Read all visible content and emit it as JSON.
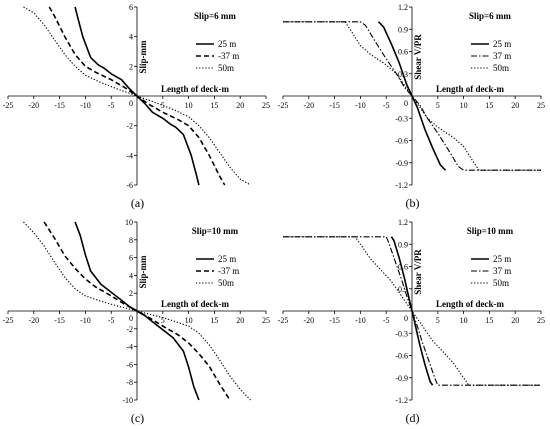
{
  "chart_data": [
    {
      "id": "a",
      "type": "line",
      "caption": "(a)",
      "annotation": "Slip=6 mm",
      "xlabel": "Length of deck-m",
      "ylabel": "Slip-mm",
      "xlim": [
        -25,
        25
      ],
      "ylim": [
        -6,
        6
      ],
      "xticks": [
        -25,
        -20,
        -15,
        -10,
        -5,
        0,
        5,
        10,
        15,
        20,
        25
      ],
      "yticks": [
        -6,
        -4,
        -2,
        2,
        4,
        6
      ],
      "legend_position": "top-right",
      "series": [
        {
          "name": "25 m",
          "style": "solid",
          "x": [
            -12,
            -11.5,
            -10.5,
            -9,
            -7.5,
            -6.5,
            -5,
            -3,
            -1.5,
            0,
            1.5,
            3,
            5,
            6.5,
            7.5,
            9,
            10.5,
            11.5,
            12
          ],
          "y": [
            6,
            5.3,
            4,
            2.6,
            2.1,
            1.9,
            1.5,
            1.1,
            0.5,
            0,
            -0.5,
            -1.1,
            -1.5,
            -1.9,
            -2.1,
            -2.6,
            -4,
            -5.3,
            -6
          ]
        },
        {
          "name": "-37 m",
          "style": "dashed",
          "x": [
            -17,
            -16,
            -14,
            -12,
            -10,
            -8,
            -5,
            -2.5,
            0,
            2.5,
            5,
            8,
            10,
            12,
            14,
            16,
            17
          ],
          "y": [
            6,
            5.4,
            4,
            2.8,
            2,
            1.6,
            1.1,
            0.6,
            0,
            -0.6,
            -1.1,
            -1.6,
            -2,
            -2.8,
            -4,
            -5.4,
            -6
          ]
        },
        {
          "name": "50m",
          "style": "dotted",
          "x": [
            -22,
            -20,
            -18,
            -16,
            -14,
            -12,
            -10,
            -7,
            -4,
            0,
            4,
            7,
            10,
            12,
            14,
            16,
            18,
            20,
            22
          ],
          "y": [
            6,
            5.6,
            4.8,
            3.8,
            2.8,
            2,
            1.4,
            0.9,
            0.5,
            0,
            -0.5,
            -0.9,
            -1.4,
            -2,
            -2.8,
            -3.8,
            -4.8,
            -5.6,
            -6
          ]
        }
      ]
    },
    {
      "id": "b",
      "type": "line",
      "caption": "(b)",
      "annotation": "Slip=6 mm",
      "xlabel": "Length of deck-m",
      "ylabel": "Shear V/PR",
      "xlim": [
        -25,
        25
      ],
      "ylim": [
        -1.2,
        1.2
      ],
      "xticks": [
        -25,
        -20,
        -15,
        -10,
        -5,
        0,
        5,
        10,
        15,
        20,
        25
      ],
      "yticks": [
        -1.2,
        -0.9,
        -0.6,
        -0.3,
        0.3,
        0.6,
        0.9,
        1.2
      ],
      "legend_position": "top-right",
      "series": [
        {
          "name": "25 m",
          "style": "solid",
          "x": [
            -6.5,
            -5.5,
            -4,
            -2.5,
            -1,
            0,
            1,
            2.5,
            4,
            5.5,
            6.5
          ],
          "y": [
            1,
            0.93,
            0.7,
            0.45,
            0.15,
            0,
            -0.15,
            -0.45,
            -0.7,
            -0.93,
            -1
          ]
        },
        {
          "name": "37 m",
          "style": "dashdot",
          "x": [
            -25,
            -10,
            -9,
            -7,
            -5,
            -3,
            -1.5,
            0,
            1.5,
            3,
            5,
            7,
            9,
            10,
            25
          ],
          "y": [
            1,
            1,
            0.95,
            0.72,
            0.5,
            0.3,
            0.12,
            0,
            -0.12,
            -0.3,
            -0.5,
            -0.72,
            -0.95,
            -1,
            -1
          ]
        },
        {
          "name": "50m",
          "style": "dotted",
          "x": [
            -25,
            -13,
            -12,
            -10,
            -8,
            -5,
            -3,
            0,
            3,
            5,
            8,
            10,
            12,
            13,
            25
          ],
          "y": [
            1,
            1,
            0.9,
            0.68,
            0.56,
            0.42,
            0.3,
            0,
            -0.3,
            -0.42,
            -0.56,
            -0.68,
            -0.9,
            -1,
            -1
          ]
        }
      ]
    },
    {
      "id": "c",
      "type": "line",
      "caption": "(c)",
      "annotation": "Slip=10 mm",
      "xlabel": "Length of deck-m",
      "ylabel": "Slip-mm",
      "xlim": [
        -25,
        25
      ],
      "ylim": [
        -10,
        10
      ],
      "xticks": [
        -25,
        -20,
        -15,
        -10,
        -5,
        0,
        5,
        10,
        15,
        20,
        25
      ],
      "yticks": [
        -10,
        -8,
        -6,
        -4,
        -2,
        2,
        4,
        6,
        8,
        10
      ],
      "legend_position": "top-right",
      "series": [
        {
          "name": "25 m",
          "style": "solid",
          "x": [
            -12,
            -11,
            -10,
            -9,
            -7,
            -5,
            -3,
            -1.5,
            0,
            1.5,
            3,
            5,
            7,
            9,
            10,
            11,
            12
          ],
          "y": [
            10,
            8.5,
            6.3,
            4.5,
            3,
            2.1,
            1.2,
            0.5,
            0,
            -0.5,
            -1.2,
            -2.1,
            -3,
            -4.5,
            -6.3,
            -8.5,
            -10
          ]
        },
        {
          "name": "-37 m",
          "style": "dashed",
          "x": [
            -18,
            -16,
            -14,
            -12,
            -10,
            -8,
            -5,
            -2.5,
            0,
            2.5,
            5,
            8,
            10,
            12,
            14,
            16,
            18
          ],
          "y": [
            10,
            8.2,
            6.2,
            4.8,
            3.6,
            2.7,
            1.7,
            0.8,
            0,
            -0.8,
            -1.7,
            -2.7,
            -3.6,
            -4.8,
            -6.2,
            -8.2,
            -10
          ]
        },
        {
          "name": "50m",
          "style": "dotted",
          "x": [
            -22,
            -20,
            -18,
            -16,
            -14,
            -12,
            -10,
            -7,
            -4,
            0,
            4,
            7,
            10,
            12,
            14,
            16,
            18,
            20,
            22
          ],
          "y": [
            10,
            8.8,
            7.3,
            5.5,
            3.8,
            2.5,
            1.7,
            1.1,
            0.6,
            0,
            -0.6,
            -1.1,
            -1.7,
            -2.5,
            -3.8,
            -5.5,
            -7.3,
            -8.8,
            -10
          ]
        }
      ]
    },
    {
      "id": "d",
      "type": "line",
      "caption": "(d)",
      "annotation": "Slip=10 mm",
      "xlabel": "Length of deck-m",
      "ylabel": "Shear V/PR",
      "xlim": [
        -25,
        25
      ],
      "ylim": [
        -1.2,
        1.2
      ],
      "xticks": [
        -25,
        -20,
        -15,
        -10,
        -5,
        0,
        5,
        10,
        15,
        20,
        25
      ],
      "yticks": [
        -1.2,
        -0.9,
        -0.6,
        -0.3,
        0.3,
        0.6,
        0.9,
        1.2
      ],
      "legend_position": "top-right",
      "series": [
        {
          "name": "25 m",
          "style": "solid",
          "x": [
            -4,
            -3.5,
            -2.5,
            -1.5,
            -0.5,
            0,
            0.5,
            1.5,
            2.5,
            3.5,
            4
          ],
          "y": [
            1,
            0.95,
            0.72,
            0.45,
            0.15,
            0,
            -0.15,
            -0.45,
            -0.72,
            -0.95,
            -1
          ]
        },
        {
          "name": "37 m",
          "style": "dashdot",
          "x": [
            -25,
            -5,
            -4.5,
            -3.5,
            -2,
            -1,
            0,
            1,
            2,
            3.5,
            4.5,
            5,
            25
          ],
          "y": [
            1,
            1,
            0.92,
            0.72,
            0.42,
            0.2,
            0,
            -0.2,
            -0.42,
            -0.72,
            -0.92,
            -1,
            -1
          ]
        },
        {
          "name": "50m",
          "style": "dotted",
          "x": [
            -25,
            -11,
            -10,
            -8,
            -6,
            -4,
            -2,
            0,
            2,
            4,
            6,
            8,
            10,
            11,
            25
          ],
          "y": [
            1,
            1,
            0.9,
            0.7,
            0.55,
            0.4,
            0.2,
            0,
            -0.2,
            -0.4,
            -0.55,
            -0.7,
            -0.9,
            -1,
            -1
          ]
        }
      ]
    }
  ]
}
